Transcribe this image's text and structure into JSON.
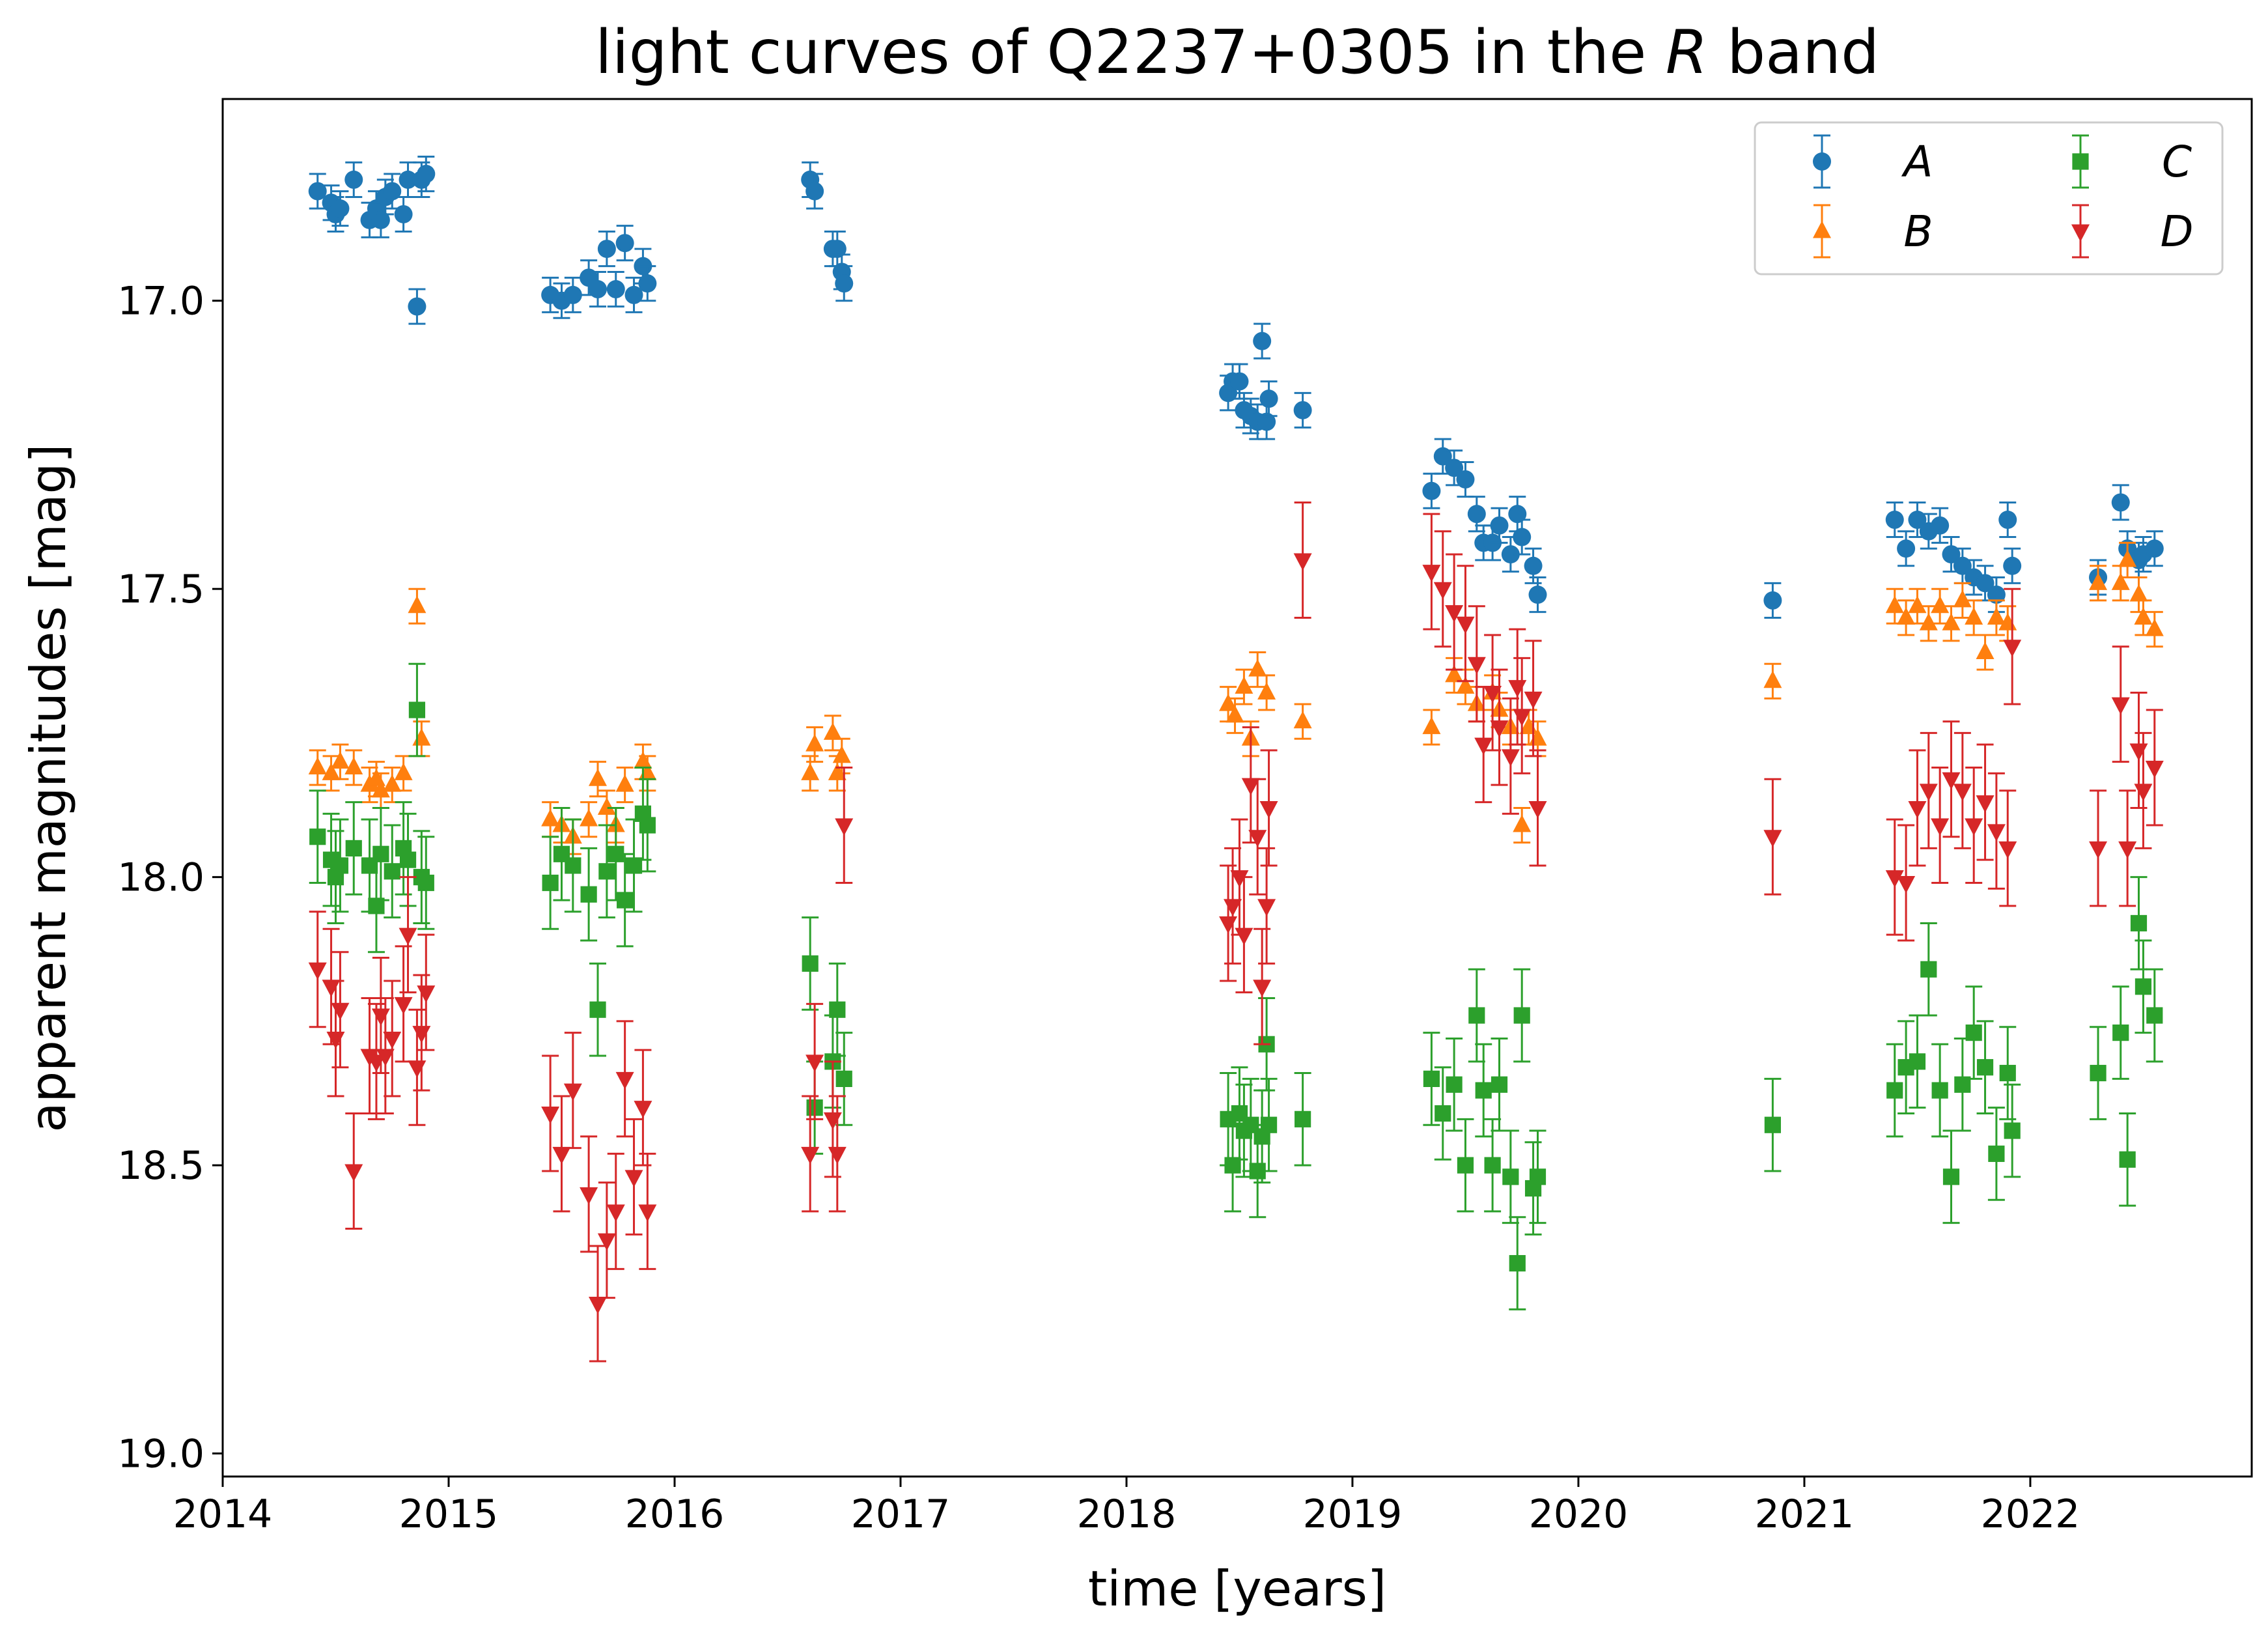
{
  "chart_data": {
    "type": "scatter",
    "title": "light curves of Q2237+0305 in the R band",
    "title_parts": [
      "light curves of Q2237+0305 in the ",
      "R",
      " band"
    ],
    "xlabel": "time [years]",
    "ylabel": "apparent magnitudes [mag]",
    "xlim": [
      2014.0,
      2022.98
    ],
    "ylim": [
      19.04,
      16.65
    ],
    "y_inverted": true,
    "xticks": [
      2014,
      2015,
      2016,
      2017,
      2018,
      2019,
      2020,
      2021,
      2022
    ],
    "xtick_labels": [
      "2014",
      "2015",
      "2016",
      "2017",
      "2018",
      "2019",
      "2020",
      "2021",
      "2022"
    ],
    "yticks": [
      17.0,
      17.5,
      18.0,
      18.5,
      19.0
    ],
    "ytick_labels": [
      "17.0",
      "17.5",
      "18.0",
      "18.5",
      "19.0"
    ],
    "grid": false,
    "legend": {
      "placement": "top-right",
      "columns": 2
    },
    "series": [
      {
        "name": "A",
        "marker": "circle",
        "color": "#1f77b4",
        "x": [
          2014.42,
          2014.48,
          2014.5,
          2014.52,
          2014.58,
          2014.65,
          2014.68,
          2014.7,
          2014.72,
          2014.75,
          2014.8,
          2014.82,
          2014.86,
          2014.88,
          2014.9,
          2015.45,
          2015.5,
          2015.55,
          2015.62,
          2015.66,
          2015.7,
          2015.74,
          2015.78,
          2015.82,
          2015.86,
          2015.88,
          2016.6,
          2016.62,
          2016.7,
          2016.72,
          2016.74,
          2016.75,
          2018.45,
          2018.47,
          2018.5,
          2018.52,
          2018.55,
          2018.58,
          2018.6,
          2018.62,
          2018.63,
          2018.78,
          2019.35,
          2019.4,
          2019.45,
          2019.5,
          2019.55,
          2019.58,
          2019.62,
          2019.65,
          2019.7,
          2019.73,
          2019.75,
          2019.8,
          2019.82,
          2020.86,
          2021.4,
          2021.45,
          2021.5,
          2021.55,
          2021.6,
          2021.65,
          2021.7,
          2021.75,
          2021.8,
          2021.85,
          2021.9,
          2021.92,
          2022.3,
          2022.4,
          2022.43,
          2022.48,
          2022.5,
          2022.55
        ],
        "y": [
          16.81,
          16.83,
          16.85,
          16.84,
          16.79,
          16.86,
          16.84,
          16.86,
          16.82,
          16.81,
          16.85,
          16.79,
          17.01,
          16.79,
          16.78,
          16.99,
          17.0,
          16.99,
          16.96,
          16.98,
          16.91,
          16.98,
          16.9,
          16.99,
          16.94,
          16.97,
          16.79,
          16.81,
          16.91,
          16.91,
          16.95,
          16.97,
          17.16,
          17.14,
          17.14,
          17.19,
          17.2,
          17.21,
          17.07,
          17.21,
          17.17,
          17.19,
          17.33,
          17.27,
          17.29,
          17.31,
          17.37,
          17.42,
          17.42,
          17.39,
          17.44,
          17.37,
          17.41,
          17.46,
          17.51,
          17.52,
          17.38,
          17.43,
          17.38,
          17.4,
          17.39,
          17.44,
          17.46,
          17.48,
          17.49,
          17.51,
          17.38,
          17.46,
          17.48,
          17.35,
          17.43,
          17.45,
          17.44,
          17.43
        ],
        "yerr": 0.03
      },
      {
        "name": "B",
        "marker": "triangle-up",
        "color": "#ff7f0e",
        "x": [
          2014.42,
          2014.48,
          2014.52,
          2014.58,
          2014.65,
          2014.68,
          2014.7,
          2014.75,
          2014.8,
          2014.86,
          2014.88,
          2015.45,
          2015.5,
          2015.55,
          2015.62,
          2015.66,
          2015.7,
          2015.74,
          2015.78,
          2015.86,
          2015.88,
          2016.6,
          2016.62,
          2016.7,
          2016.72,
          2016.74,
          2018.45,
          2018.48,
          2018.52,
          2018.55,
          2018.58,
          2018.62,
          2018.78,
          2019.35,
          2019.45,
          2019.5,
          2019.55,
          2019.62,
          2019.65,
          2019.7,
          2019.75,
          2019.78,
          2019.82,
          2020.86,
          2021.4,
          2021.45,
          2021.5,
          2021.55,
          2021.6,
          2021.65,
          2021.7,
          2021.75,
          2021.8,
          2021.85,
          2021.9,
          2022.3,
          2022.4,
          2022.43,
          2022.48,
          2022.5,
          2022.55
        ],
        "y": [
          17.81,
          17.82,
          17.8,
          17.81,
          17.84,
          17.83,
          17.85,
          17.84,
          17.82,
          17.53,
          17.76,
          17.9,
          17.91,
          17.93,
          17.9,
          17.83,
          17.88,
          17.91,
          17.84,
          17.8,
          17.82,
          17.82,
          17.77,
          17.75,
          17.82,
          17.79,
          17.7,
          17.72,
          17.67,
          17.76,
          17.64,
          17.68,
          17.73,
          17.74,
          17.65,
          17.67,
          17.7,
          17.68,
          17.71,
          17.74,
          17.91,
          17.74,
          17.76,
          17.66,
          17.53,
          17.55,
          17.53,
          17.56,
          17.53,
          17.56,
          17.52,
          17.55,
          17.61,
          17.55,
          17.56,
          17.49,
          17.49,
          17.45,
          17.51,
          17.55,
          17.57
        ],
        "yerr": 0.03
      },
      {
        "name": "C",
        "marker": "square",
        "color": "#2ca02c",
        "x": [
          2014.42,
          2014.48,
          2014.5,
          2014.52,
          2014.58,
          2014.65,
          2014.68,
          2014.7,
          2014.75,
          2014.8,
          2014.82,
          2014.86,
          2014.88,
          2014.9,
          2015.45,
          2015.5,
          2015.55,
          2015.62,
          2015.66,
          2015.7,
          2015.74,
          2015.78,
          2015.82,
          2015.86,
          2015.88,
          2016.6,
          2016.62,
          2016.7,
          2016.72,
          2016.75,
          2018.45,
          2018.47,
          2018.5,
          2018.52,
          2018.55,
          2018.58,
          2018.6,
          2018.62,
          2018.63,
          2018.78,
          2019.35,
          2019.4,
          2019.45,
          2019.5,
          2019.55,
          2019.58,
          2019.62,
          2019.65,
          2019.7,
          2019.73,
          2019.75,
          2019.8,
          2019.82,
          2020.86,
          2021.4,
          2021.45,
          2021.5,
          2021.55,
          2021.6,
          2021.65,
          2021.7,
          2021.75,
          2021.8,
          2021.85,
          2021.9,
          2021.92,
          2022.3,
          2022.4,
          2022.43,
          2022.48,
          2022.5,
          2022.55
        ],
        "y": [
          17.93,
          17.97,
          18.0,
          17.98,
          17.95,
          17.98,
          18.05,
          17.96,
          17.99,
          17.95,
          17.97,
          17.71,
          18.0,
          18.01,
          18.01,
          17.96,
          17.98,
          18.03,
          18.23,
          17.99,
          17.96,
          18.04,
          17.98,
          17.89,
          17.91,
          18.15,
          18.4,
          18.32,
          18.23,
          18.35,
          18.42,
          18.5,
          18.41,
          18.44,
          18.43,
          18.51,
          18.45,
          18.29,
          18.43,
          18.42,
          18.35,
          18.41,
          18.36,
          18.5,
          18.24,
          18.37,
          18.5,
          18.36,
          18.52,
          18.67,
          18.24,
          18.54,
          18.52,
          18.43,
          18.37,
          18.33,
          18.32,
          18.16,
          18.37,
          18.52,
          18.36,
          18.27,
          18.33,
          18.48,
          18.34,
          18.44,
          18.34,
          18.27,
          18.49,
          18.08,
          18.19,
          18.24
        ],
        "yerr": 0.08
      },
      {
        "name": "D",
        "marker": "triangle-down",
        "color": "#d62728",
        "x": [
          2014.42,
          2014.48,
          2014.5,
          2014.52,
          2014.58,
          2014.65,
          2014.68,
          2014.7,
          2014.72,
          2014.75,
          2014.8,
          2014.82,
          2014.86,
          2014.88,
          2014.9,
          2015.45,
          2015.5,
          2015.55,
          2015.62,
          2015.66,
          2015.7,
          2015.74,
          2015.78,
          2015.82,
          2015.86,
          2015.88,
          2016.6,
          2016.62,
          2016.7,
          2016.72,
          2016.75,
          2018.45,
          2018.47,
          2018.5,
          2018.52,
          2018.55,
          2018.58,
          2018.6,
          2018.62,
          2018.63,
          2018.78,
          2019.35,
          2019.4,
          2019.45,
          2019.5,
          2019.55,
          2019.58,
          2019.62,
          2019.65,
          2019.7,
          2019.73,
          2019.75,
          2019.8,
          2019.82,
          2020.86,
          2021.4,
          2021.45,
          2021.5,
          2021.55,
          2021.6,
          2021.65,
          2021.7,
          2021.75,
          2021.8,
          2021.85,
          2021.9,
          2021.92,
          2022.3,
          2022.4,
          2022.43,
          2022.48,
          2022.5,
          2022.55
        ],
        "y": [
          18.16,
          18.19,
          18.28,
          18.23,
          18.51,
          18.31,
          18.32,
          18.24,
          18.31,
          18.28,
          18.22,
          18.1,
          18.33,
          18.27,
          18.2,
          18.41,
          18.48,
          18.37,
          18.55,
          18.74,
          18.63,
          18.58,
          18.35,
          18.52,
          18.4,
          18.58,
          18.48,
          18.32,
          18.42,
          18.48,
          17.91,
          18.08,
          18.05,
          18.0,
          18.1,
          17.84,
          17.93,
          18.19,
          18.05,
          17.88,
          17.45,
          17.47,
          17.5,
          17.54,
          17.56,
          17.63,
          17.77,
          17.68,
          17.74,
          17.79,
          17.67,
          17.72,
          17.69,
          17.88,
          17.93,
          18.0,
          18.01,
          17.88,
          17.85,
          17.91,
          17.83,
          17.85,
          17.91,
          17.87,
          17.92,
          17.95,
          17.6,
          17.95,
          17.7,
          17.95,
          17.78,
          17.85,
          17.81
        ],
        "yerr": 0.1
      }
    ]
  }
}
